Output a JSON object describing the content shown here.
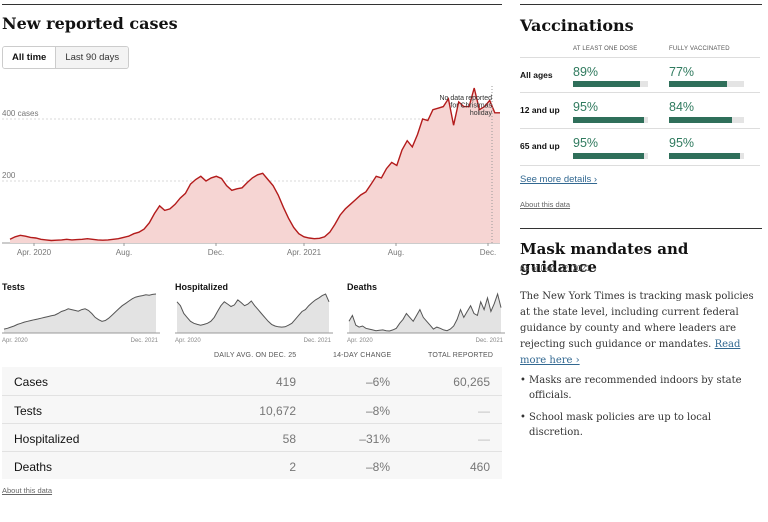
{
  "cases": {
    "title": "New reported cases",
    "tabs": [
      {
        "label": "All time",
        "active": true
      },
      {
        "label": "Last 90 days",
        "active": false
      }
    ],
    "annotation": [
      "No data reported",
      "for Christmas",
      "holiday"
    ],
    "chart_data": {
      "type": "area",
      "y_ticks": [
        {
          "value": 200,
          "label": "200"
        },
        {
          "value": 400,
          "label": "400 cases"
        }
      ],
      "x_ticks": [
        {
          "label": "Apr. 2020"
        },
        {
          "label": "Aug."
        },
        {
          "label": "Dec."
        },
        {
          "label": "Apr. 2021"
        },
        {
          "label": "Aug."
        },
        {
          "label": "Dec."
        }
      ],
      "ylim": [
        0,
        500
      ],
      "series": [
        {
          "values": [
            12,
            20,
            25,
            22,
            18,
            16,
            12,
            10,
            8,
            9,
            10,
            12,
            10,
            11,
            12,
            14,
            12,
            10,
            9,
            10,
            12,
            14,
            18,
            22,
            30,
            35,
            45,
            65,
            95,
            120,
            105,
            110,
            125,
            145,
            160,
            190,
            205,
            215,
            200,
            210,
            215,
            208,
            185,
            170,
            175,
            178,
            195,
            210,
            220,
            225,
            205,
            185,
            155,
            115,
            80,
            50,
            30,
            20,
            16,
            14,
            15,
            20,
            35,
            60,
            90,
            110,
            125,
            140,
            155,
            165,
            190,
            215,
            210,
            240,
            260,
            250,
            300,
            330,
            310,
            350,
            400,
            395,
            430,
            435,
            440,
            465,
            380,
            455,
            440,
            440,
            500,
            430,
            440,
            460,
            420,
            420
          ]
        }
      ]
    }
  },
  "mini_charts": [
    {
      "title": "Tests",
      "x_labels": [
        "Apr. 2020",
        "Dec. 2021"
      ],
      "values": [
        10,
        12,
        15,
        18,
        22,
        25,
        28,
        30,
        32,
        34,
        36,
        38,
        40,
        42,
        44,
        46,
        50,
        55,
        58,
        62,
        60,
        58,
        56,
        60,
        62,
        58,
        50,
        40,
        34,
        30,
        32,
        38,
        46,
        54,
        62,
        70,
        76,
        82,
        88,
        92,
        94,
        96,
        98,
        97,
        99,
        100
      ]
    },
    {
      "title": "Hospitalized",
      "x_labels": [
        "Apr. 2020",
        "Dec. 2021"
      ],
      "values": [
        80,
        70,
        50,
        40,
        30,
        25,
        22,
        20,
        22,
        25,
        30,
        40,
        55,
        70,
        80,
        74,
        68,
        72,
        85,
        78,
        70,
        74,
        82,
        70,
        60,
        50,
        40,
        30,
        22,
        18,
        16,
        15,
        16,
        20,
        25,
        35,
        45,
        55,
        60,
        70,
        78,
        85,
        90,
        96,
        100,
        80
      ]
    },
    {
      "title": "Deaths",
      "x_labels": [
        "Apr. 2020",
        "Dec. 2021"
      ],
      "values": [
        30,
        45,
        20,
        15,
        18,
        12,
        10,
        8,
        6,
        7,
        8,
        6,
        5,
        8,
        12,
        25,
        35,
        50,
        40,
        30,
        45,
        60,
        40,
        30,
        20,
        10,
        15,
        12,
        8,
        6,
        10,
        18,
        35,
        60,
        40,
        55,
        70,
        50,
        45,
        80,
        60,
        90,
        55,
        75,
        100,
        65
      ]
    }
  ],
  "table": {
    "headers": {
      "avg": "DAILY AVG. ON DEC. 25",
      "change": "14-DAY CHANGE",
      "total": "TOTAL REPORTED"
    },
    "rows": [
      {
        "name": "Cases",
        "avg": "419",
        "change": "–6%",
        "total": "60,265"
      },
      {
        "name": "Tests",
        "avg": "10,672",
        "change": "–8%",
        "total": "—"
      },
      {
        "name": "Hospitalized",
        "avg": "58",
        "change": "–31%",
        "total": "—"
      },
      {
        "name": "Deaths",
        "avg": "2",
        "change": "–8%",
        "total": "460"
      }
    ],
    "about_link": "About this data"
  },
  "vaccinations": {
    "title": "Vaccinations",
    "col_headers": [
      "AT LEAST ONE DOSE",
      "FULLY VACCINATED"
    ],
    "rows": [
      {
        "label": "All ages",
        "one_dose": "89%",
        "one_dose_pct": 89,
        "full": "77%",
        "full_pct": 77
      },
      {
        "label": "12 and up",
        "one_dose": "95%",
        "one_dose_pct": 95,
        "full": "84%",
        "full_pct": 84
      },
      {
        "label": "65 and up",
        "one_dose": "95%",
        "one_dose_pct": 95,
        "full": "95%",
        "full_pct": 95
      }
    ],
    "see_more": "See more details ›",
    "about_link": "About this data",
    "bar_color": "#2f6f5a",
    "value_color": "#2f7a5e"
  },
  "masks": {
    "title": "Mask mandates and guidance",
    "date": "As of Dec. 22, 2021",
    "body": "The New York Times is tracking mask policies at the state level, including current federal guidance by county and where leaders are rejecting such guidance or mandates.",
    "read_more": "Read more here ›",
    "bullets": [
      "Masks are recommended indoors by state officials.",
      "School mask policies are up to local discretion."
    ]
  },
  "colors": {
    "case_line": "#b31b1b",
    "case_fill": "#f6d5d3",
    "mini_line": "#555555",
    "mini_fill": "#e3e3e3",
    "link": "#326891"
  }
}
